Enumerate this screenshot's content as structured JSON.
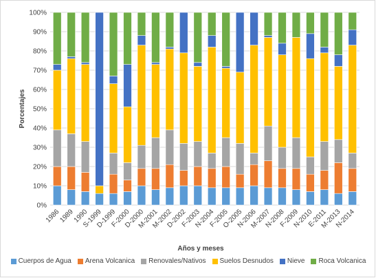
{
  "chart_data": {
    "type": "bar",
    "stacked": true,
    "percent": true,
    "title": "",
    "xlabel": "Años y meses",
    "ylabel": "Porcentajes",
    "ylim": [
      0,
      100
    ],
    "yticks": [
      "0%",
      "10%",
      "20%",
      "30%",
      "40%",
      "50%",
      "60%",
      "70%",
      "80%",
      "90%",
      "100%"
    ],
    "grid": true,
    "legend_position": "bottom",
    "categories": [
      "1986",
      "1989",
      "1990",
      "S-1999",
      "D-1999",
      "F-2000",
      "D-2000",
      "M-2001",
      "M-2002",
      "D-2002",
      "F-2003",
      "N-2004",
      "F-2005",
      "O-2005",
      "N-2006",
      "M-2007",
      "N-2008",
      "F-2009",
      "N-2010",
      "E-2011",
      "M-2013",
      "N-2014"
    ],
    "series": [
      {
        "name": "Cuerpos de Agua",
        "color": "#5B9BD5",
        "values": [
          10,
          8,
          7,
          6,
          6,
          7,
          10,
          8,
          9,
          10,
          10,
          9,
          9,
          9,
          10,
          9,
          9,
          8,
          7,
          8,
          6,
          7
        ]
      },
      {
        "name": "Arena Volcanica",
        "color": "#ED7D31",
        "values": [
          10,
          12,
          10,
          0,
          10,
          6,
          9,
          11,
          12,
          8,
          10,
          10,
          11,
          7,
          11,
          14,
          10,
          11,
          9,
          10,
          16,
          12
        ]
      },
      {
        "name": "Renovales/Nativos",
        "color": "#A5A5A5",
        "values": [
          19,
          17,
          16,
          0,
          11,
          9,
          12,
          16,
          18,
          14,
          13,
          8,
          15,
          16,
          6,
          18,
          11,
          16,
          9,
          15,
          12,
          8
        ]
      },
      {
        "name": "Suelos Desnudos",
        "color": "#FFC000",
        "values": [
          31,
          39,
          40,
          4,
          36,
          29,
          52,
          38,
          42,
          47,
          39,
          55,
          36,
          37,
          56,
          46,
          48,
          52,
          51,
          46,
          38,
          56
        ]
      },
      {
        "name": "Nieve",
        "color": "#4472C4",
        "values": [
          3,
          1,
          1,
          90,
          4,
          22,
          5,
          1,
          1,
          21,
          2,
          6,
          1,
          31,
          17,
          1,
          6,
          0,
          13,
          3,
          6,
          8
        ]
      },
      {
        "name": "Roca Volcanica",
        "color": "#70AD47",
        "values": [
          27,
          23,
          26,
          0,
          33,
          27,
          12,
          26,
          18,
          0,
          26,
          12,
          28,
          0,
          0,
          12,
          16,
          13,
          11,
          18,
          22,
          9
        ]
      }
    ]
  }
}
